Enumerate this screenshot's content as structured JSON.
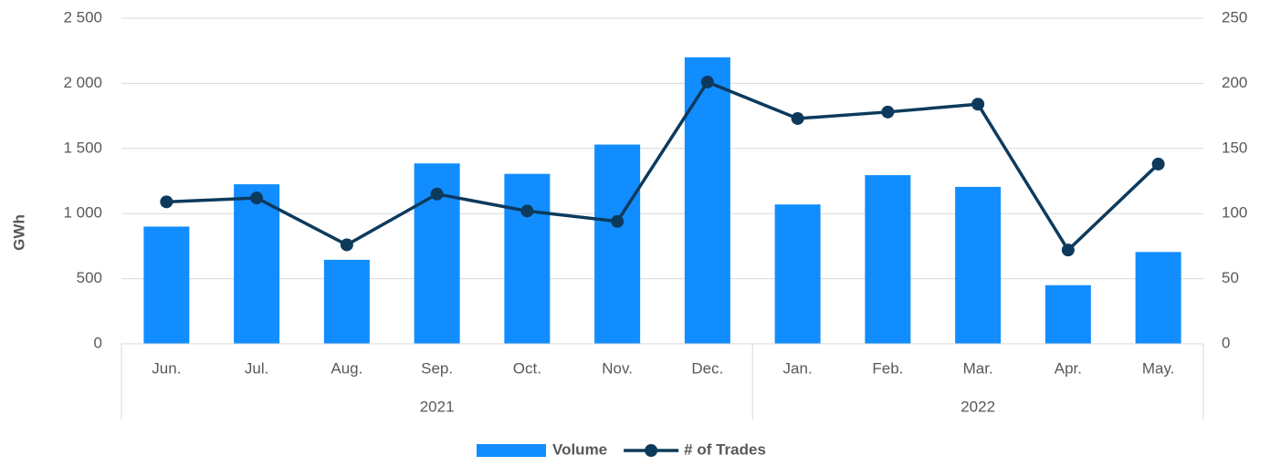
{
  "chart_data": {
    "type": "bar",
    "categories": [
      "Jun.",
      "Jul.",
      "Aug.",
      "Sep.",
      "Oct.",
      "Nov.",
      "Dec.",
      "Jan.",
      "Feb.",
      "Mar.",
      "Apr.",
      "May."
    ],
    "groups": [
      {
        "label": "2021",
        "count": 7
      },
      {
        "label": "2022",
        "count": 5
      }
    ],
    "ylabel": "GWh",
    "ylim": [
      0,
      2500
    ],
    "yticks": [
      0,
      500,
      {
        "value": 1000,
        "label": "1 000"
      },
      {
        "value": 1500,
        "label": "1 500"
      },
      {
        "value": 2000,
        "label": "2 000"
      },
      {
        "value": 2500,
        "label": "2 500"
      }
    ],
    "y2lim": [
      0,
      250
    ],
    "y2ticks": [
      0,
      50,
      100,
      150,
      200,
      250
    ],
    "grid": true,
    "legend": "bottom",
    "series": [
      {
        "name": "Volume",
        "type": "bar",
        "color": "#118dff",
        "values": [
          900,
          1225,
          645,
          1385,
          1305,
          1530,
          2200,
          1070,
          1295,
          1205,
          450,
          705
        ]
      },
      {
        "name": "# of Trades",
        "type": "line",
        "axis": "y2",
        "color": "#0d3a5c",
        "values": [
          109,
          112,
          76,
          115,
          102,
          94,
          201,
          173,
          178,
          184,
          72,
          138
        ]
      }
    ]
  }
}
